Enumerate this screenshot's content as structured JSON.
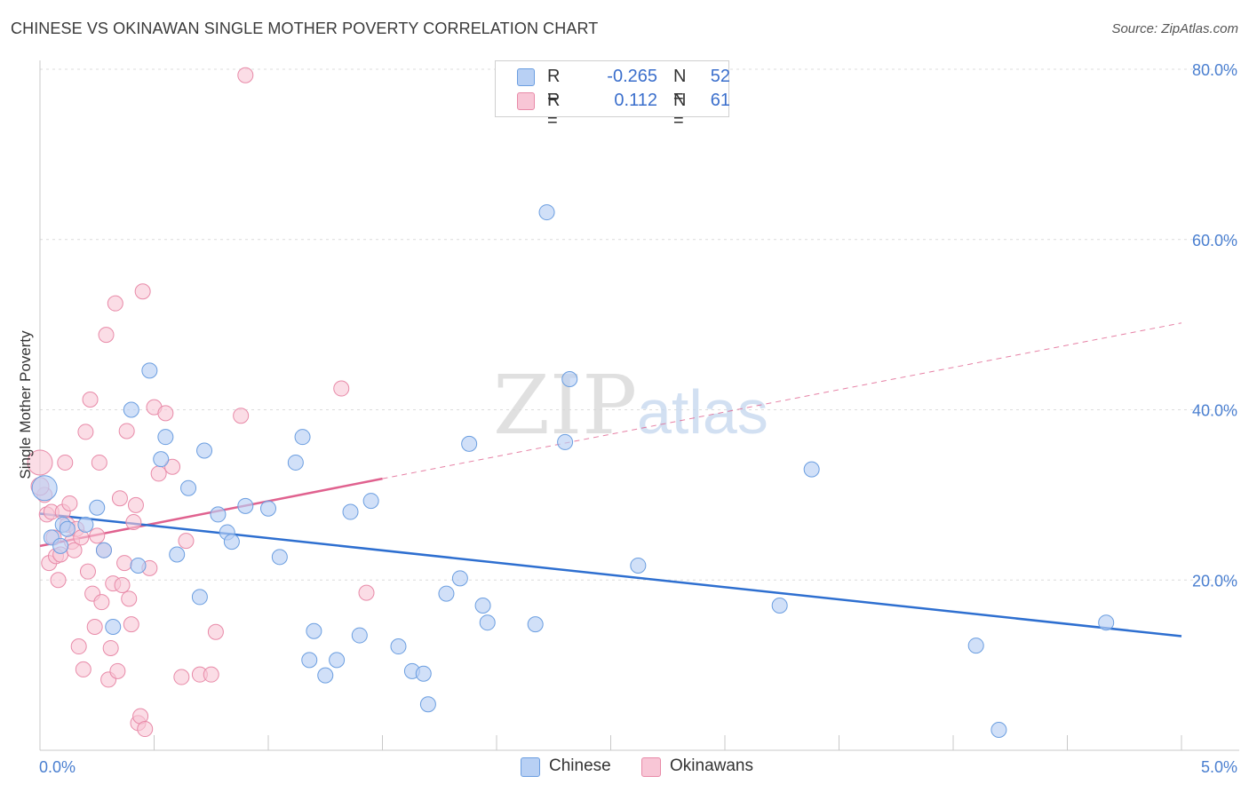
{
  "header": {
    "title": "CHINESE VS OKINAWAN SINGLE MOTHER POVERTY CORRELATION CHART",
    "source": "Source: ZipAtlas.com"
  },
  "legend": {
    "rows": [
      {
        "r_label": "R =",
        "r_value": "-0.265",
        "n_label": "N =",
        "n_value": "52"
      },
      {
        "r_label": "R =",
        "r_value": "0.112",
        "n_label": "N =",
        "n_value": "61"
      }
    ]
  },
  "bottom_legend": {
    "chinese": "Chinese",
    "okinawans": "Okinawans"
  },
  "watermark": {
    "zip": "ZIP",
    "atlas": "atlas"
  },
  "colors": {
    "chinese_fill": "#b8d0f4",
    "chinese_stroke": "#6b9ee0",
    "chinese_line": "#2e6fd0",
    "okinawan_fill": "#f8c6d6",
    "okinawan_stroke": "#e88aa8",
    "okinawan_line": "#e0628f",
    "tick_label": "#4a7fd0"
  },
  "chart_data": {
    "type": "scatter",
    "title": "CHINESE VS OKINAWAN SINGLE MOTHER POVERTY CORRELATION CHART",
    "xlabel": "",
    "ylabel": "Single Mother Poverty",
    "xlim": [
      0,
      5
    ],
    "ylim": [
      0,
      80
    ],
    "x_tick_labels": [
      "0.0%",
      "5.0%"
    ],
    "y_ticks": [
      20,
      40,
      60,
      80
    ],
    "y_tick_labels": [
      "20.0%",
      "40.0%",
      "60.0%",
      "80.0%"
    ],
    "grid": true,
    "legend_position": "top-center",
    "series": [
      {
        "name": "Chinese",
        "r": -0.265,
        "n": 52,
        "trend": {
          "x": [
            0.0,
            5.0
          ],
          "y": [
            27.8,
            13.4
          ]
        },
        "points": [
          [
            0.02,
            30.8
          ],
          [
            0.05,
            25.0
          ],
          [
            0.09,
            24.0
          ],
          [
            0.1,
            26.5
          ],
          [
            0.2,
            26.5
          ],
          [
            0.28,
            23.5
          ],
          [
            0.32,
            14.5
          ],
          [
            0.4,
            40.0
          ],
          [
            0.43,
            21.7
          ],
          [
            0.48,
            44.6
          ],
          [
            0.53,
            34.2
          ],
          [
            0.55,
            36.8
          ],
          [
            0.6,
            23.0
          ],
          [
            0.65,
            30.8
          ],
          [
            0.7,
            18.0
          ],
          [
            0.72,
            35.2
          ],
          [
            0.78,
            27.7
          ],
          [
            0.82,
            25.6
          ],
          [
            0.84,
            24.5
          ],
          [
            0.9,
            28.7
          ],
          [
            1.0,
            28.4
          ],
          [
            1.05,
            22.7
          ],
          [
            1.12,
            33.8
          ],
          [
            1.15,
            36.8
          ],
          [
            1.18,
            10.6
          ],
          [
            1.2,
            14.0
          ],
          [
            1.25,
            8.8
          ],
          [
            1.3,
            10.6
          ],
          [
            1.36,
            28.0
          ],
          [
            1.4,
            13.5
          ],
          [
            1.45,
            29.3
          ],
          [
            1.57,
            12.2
          ],
          [
            1.63,
            9.3
          ],
          [
            1.68,
            9.0
          ],
          [
            1.7,
            5.4
          ],
          [
            1.78,
            18.4
          ],
          [
            1.84,
            20.2
          ],
          [
            1.88,
            36.0
          ],
          [
            1.94,
            17.0
          ],
          [
            1.96,
            15.0
          ],
          [
            2.17,
            14.8
          ],
          [
            2.22,
            63.2
          ],
          [
            2.3,
            36.2
          ],
          [
            2.32,
            43.6
          ],
          [
            2.62,
            21.7
          ],
          [
            3.24,
            17.0
          ],
          [
            3.38,
            33.0
          ],
          [
            4.1,
            12.3
          ],
          [
            4.2,
            2.4
          ],
          [
            4.67,
            15.0
          ],
          [
            0.25,
            28.5
          ],
          [
            0.12,
            26.0
          ]
        ]
      },
      {
        "name": "Okinawans",
        "r": 0.112,
        "n": 61,
        "trend": {
          "x": [
            0.0,
            1.5
          ],
          "y": [
            24.0,
            31.9
          ]
        },
        "trend_dashed": {
          "x": [
            1.5,
            5.0
          ],
          "y": [
            31.9,
            50.2
          ]
        },
        "points": [
          [
            0.0,
            33.8
          ],
          [
            0.02,
            30.0
          ],
          [
            0.03,
            27.7
          ],
          [
            0.04,
            22.0
          ],
          [
            0.05,
            28.0
          ],
          [
            0.06,
            25.0
          ],
          [
            0.07,
            22.8
          ],
          [
            0.08,
            20.0
          ],
          [
            0.09,
            23.0
          ],
          [
            0.1,
            28.0
          ],
          [
            0.11,
            33.8
          ],
          [
            0.12,
            26.5
          ],
          [
            0.13,
            29.0
          ],
          [
            0.14,
            24.5
          ],
          [
            0.15,
            23.5
          ],
          [
            0.16,
            26.0
          ],
          [
            0.17,
            12.2
          ],
          [
            0.18,
            25.0
          ],
          [
            0.19,
            9.5
          ],
          [
            0.2,
            37.4
          ],
          [
            0.21,
            21.0
          ],
          [
            0.22,
            41.2
          ],
          [
            0.23,
            18.4
          ],
          [
            0.24,
            14.5
          ],
          [
            0.25,
            25.2
          ],
          [
            0.26,
            33.8
          ],
          [
            0.27,
            17.4
          ],
          [
            0.28,
            23.5
          ],
          [
            0.29,
            48.8
          ],
          [
            0.3,
            8.3
          ],
          [
            0.31,
            12.0
          ],
          [
            0.32,
            19.6
          ],
          [
            0.33,
            52.5
          ],
          [
            0.34,
            9.3
          ],
          [
            0.35,
            29.6
          ],
          [
            0.36,
            19.4
          ],
          [
            0.37,
            22.0
          ],
          [
            0.38,
            37.5
          ],
          [
            0.39,
            17.8
          ],
          [
            0.4,
            14.8
          ],
          [
            0.41,
            26.8
          ],
          [
            0.42,
            28.8
          ],
          [
            0.43,
            3.2
          ],
          [
            0.44,
            4.0
          ],
          [
            0.45,
            53.9
          ],
          [
            0.46,
            2.5
          ],
          [
            0.48,
            21.4
          ],
          [
            0.5,
            40.3
          ],
          [
            0.52,
            32.5
          ],
          [
            0.55,
            39.6
          ],
          [
            0.58,
            33.3
          ],
          [
            0.62,
            8.6
          ],
          [
            0.64,
            24.6
          ],
          [
            0.7,
            8.9
          ],
          [
            0.75,
            8.9
          ],
          [
            0.77,
            13.9
          ],
          [
            0.88,
            39.3
          ],
          [
            0.9,
            79.3
          ],
          [
            1.32,
            42.5
          ],
          [
            1.43,
            18.5
          ],
          [
            0.0,
            31.0
          ]
        ]
      }
    ]
  }
}
